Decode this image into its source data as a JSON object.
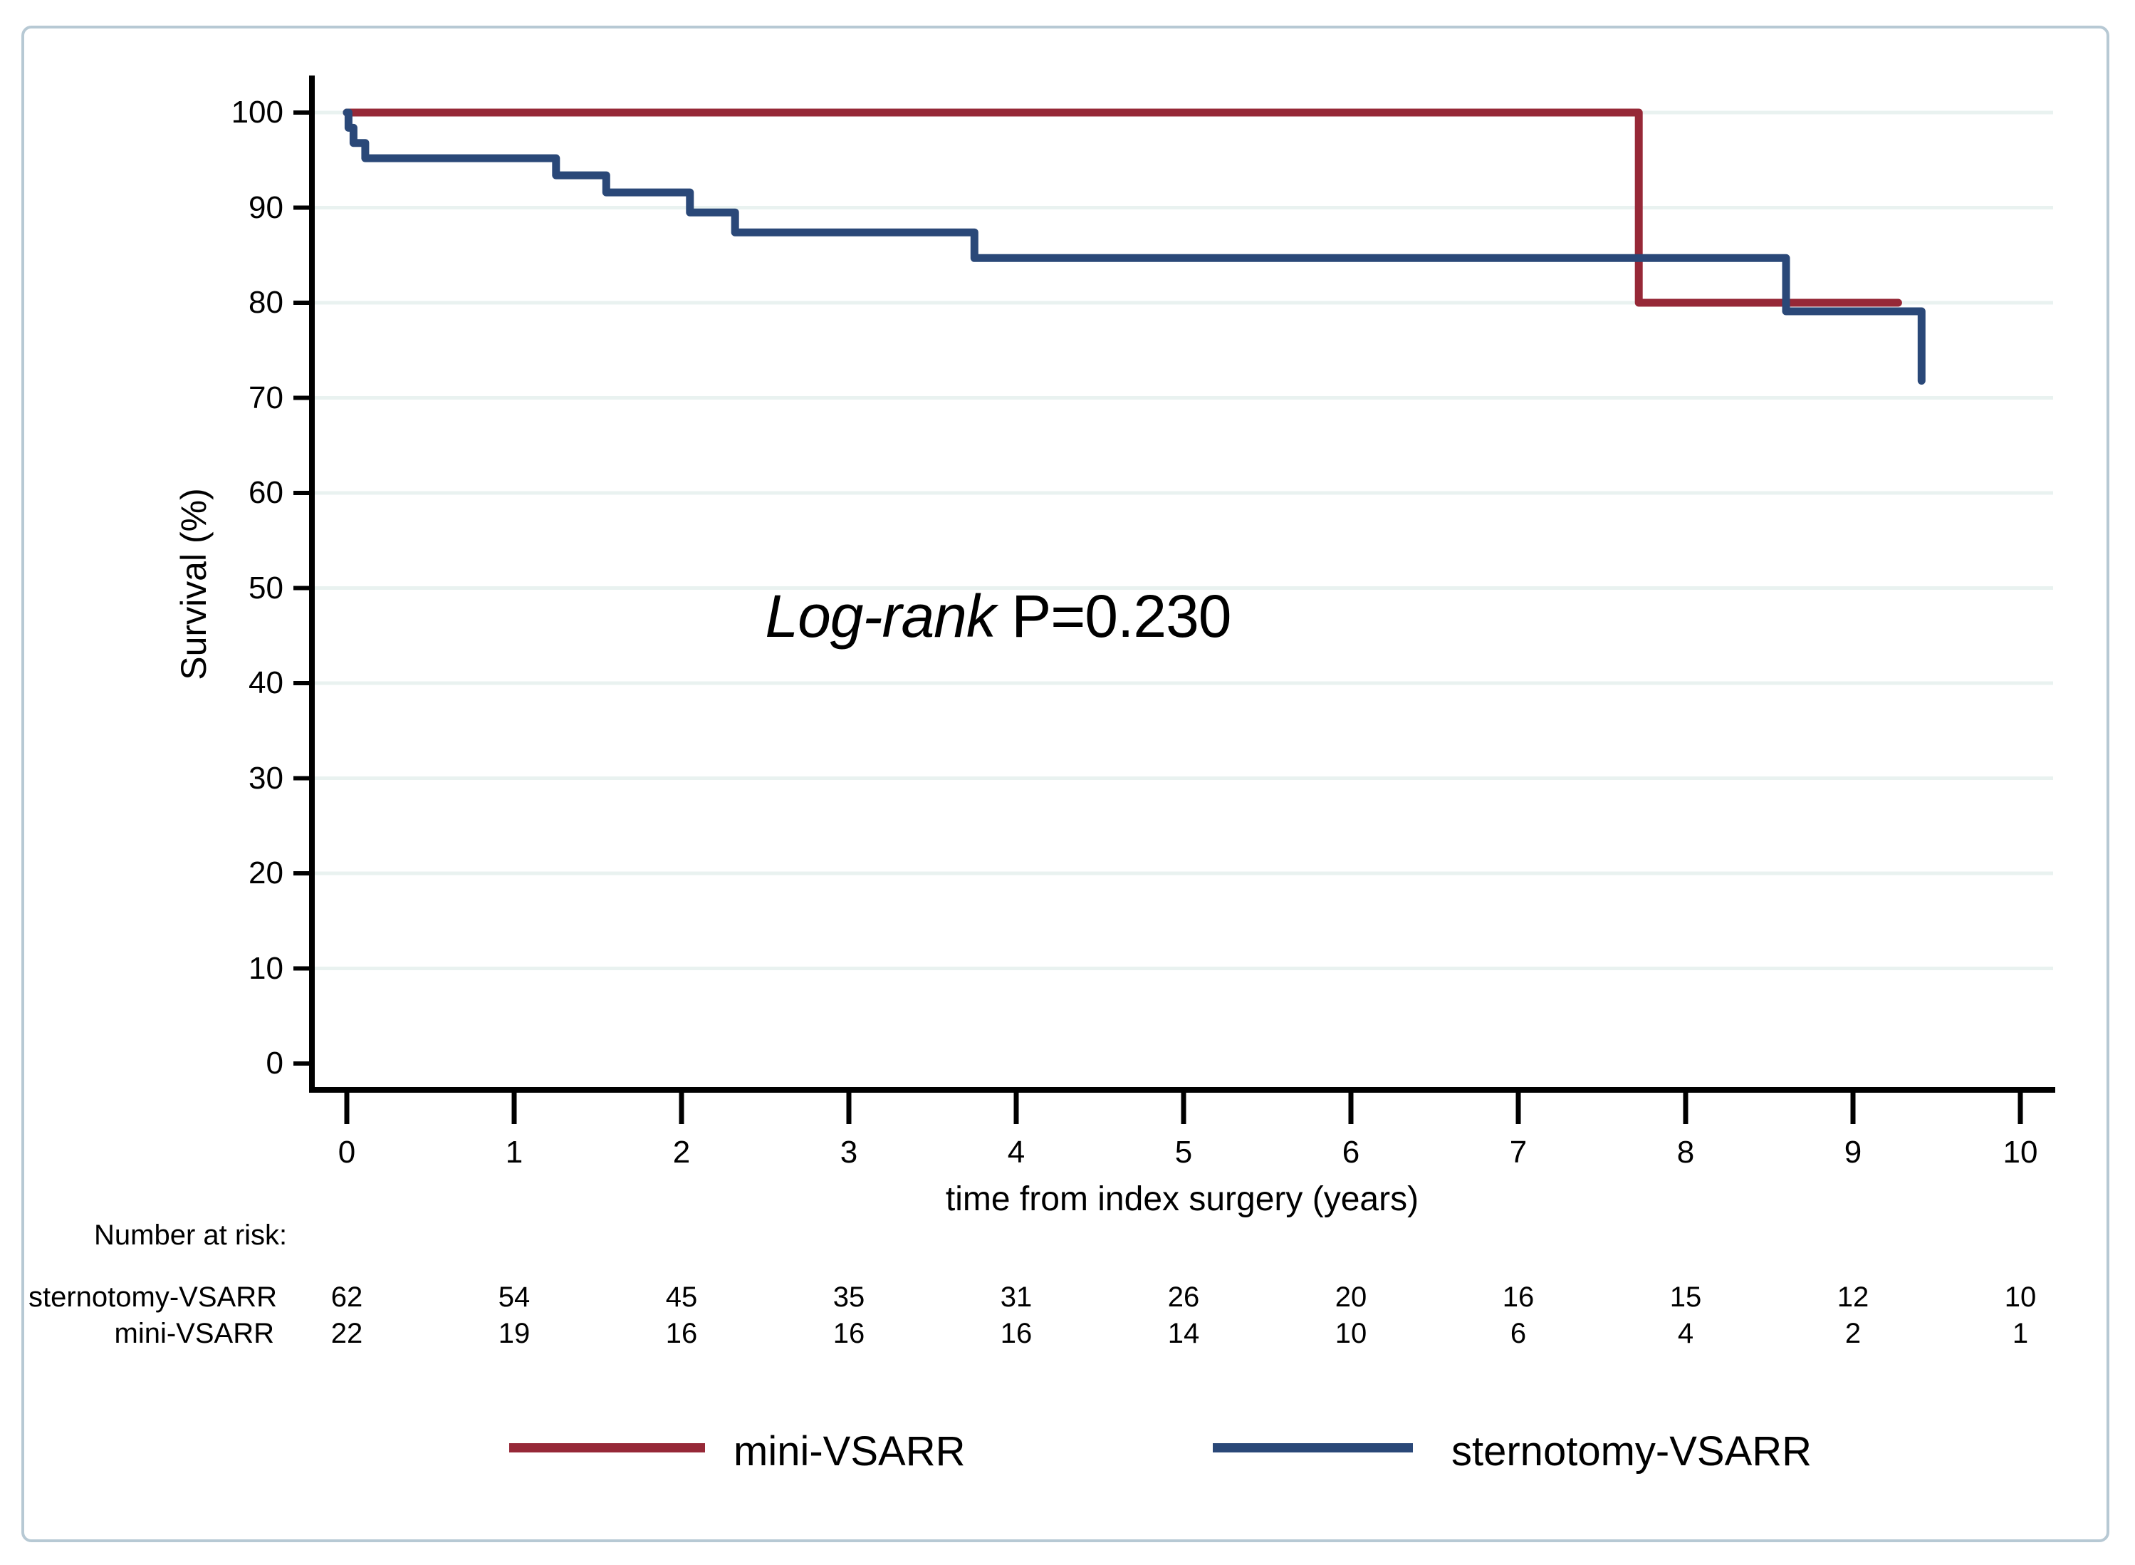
{
  "figure": {
    "y_axis": {
      "label": "Survival (%)",
      "ticks": [
        "100",
        "90",
        "80",
        "70",
        "60",
        "50",
        "40",
        "30",
        "20",
        "10",
        "0"
      ]
    },
    "x_axis": {
      "label": "time from index surgery (years)",
      "ticks": [
        "0",
        "1",
        "2",
        "3",
        "4",
        "5",
        "6",
        "7",
        "8",
        "9",
        "10"
      ]
    },
    "annotation": {
      "italic": "Log-rank",
      "rest": " P=0.230"
    },
    "risk_table": {
      "title": "Number at risk:",
      "rows": [
        {
          "label": "sternotomy-VSARR",
          "counts": [
            "62",
            "54",
            "45",
            "35",
            "31",
            "26",
            "20",
            "16",
            "15",
            "12",
            "10"
          ]
        },
        {
          "label": "mini-VSARR",
          "counts": [
            "22",
            "19",
            "16",
            "16",
            "16",
            "14",
            "10",
            "6",
            "4",
            "2",
            "1"
          ]
        }
      ]
    },
    "legend": [
      {
        "label": "mini-VSARR",
        "color": "#962837"
      },
      {
        "label": "sternotomy-VSARR",
        "color": "#2a4878"
      }
    ],
    "colors": {
      "mini": "#962837",
      "sternotomy": "#2a4878",
      "grid": "#e9f2f0",
      "axis": "#000000",
      "frame_border": "#b7c9d4"
    }
  },
  "chart_data": {
    "type": "line",
    "subtype": "kaplan-meier-step",
    "title": "",
    "xlabel": "time from index surgery (years)",
    "ylabel": "Survival (%)",
    "xlim": [
      0,
      10
    ],
    "ylim": [
      0,
      100
    ],
    "x_ticks": [
      0,
      1,
      2,
      3,
      4,
      5,
      6,
      7,
      8,
      9,
      10
    ],
    "y_ticks": [
      100,
      90,
      80,
      70,
      60,
      50,
      40,
      30,
      20,
      10,
      0
    ],
    "grid": "horizontal-only",
    "legend_position": "bottom",
    "annotation": "Log-rank P=0.230",
    "series": [
      {
        "name": "mini-VSARR",
        "color": "#962837",
        "step": "after",
        "points": [
          [
            0,
            100
          ],
          [
            7.72,
            80
          ],
          [
            9.27,
            80
          ]
        ]
      },
      {
        "name": "sternotomy-VSARR",
        "color": "#2a4878",
        "step": "after",
        "points": [
          [
            0,
            100
          ],
          [
            0.01,
            98.4
          ],
          [
            0.04,
            96.8
          ],
          [
            0.11,
            95.2
          ],
          [
            1.25,
            93.4
          ],
          [
            1.55,
            91.6
          ],
          [
            2.05,
            89.5
          ],
          [
            2.32,
            87.4
          ],
          [
            3.75,
            84.7
          ],
          [
            8.6,
            79.1
          ],
          [
            9.41,
            71.8
          ]
        ]
      }
    ],
    "number_at_risk": {
      "times": [
        0,
        1,
        2,
        3,
        4,
        5,
        6,
        7,
        8,
        9,
        10
      ],
      "sternotomy-VSARR": [
        62,
        54,
        45,
        35,
        31,
        26,
        20,
        16,
        15,
        12,
        10
      ],
      "mini-VSARR": [
        22,
        19,
        16,
        16,
        16,
        14,
        10,
        6,
        4,
        2,
        1
      ]
    }
  }
}
